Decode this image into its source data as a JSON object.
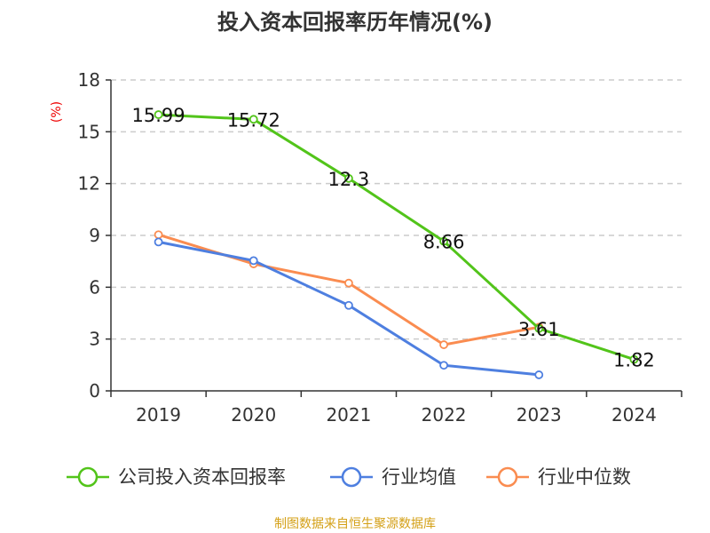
{
  "chart_data": {
    "type": "line",
    "title": "投入资本回报率历年情况(%)",
    "ylabel": "(%)",
    "categories": [
      "2019",
      "2020",
      "2021",
      "2022",
      "2023",
      "2024"
    ],
    "ylim": [
      0,
      18
    ],
    "yticks": [
      0,
      3,
      6,
      9,
      12,
      15,
      18
    ],
    "grid": true,
    "legend_placement": "bottom",
    "series": [
      {
        "name": "公司投入资本回报率",
        "color": "#52c41a",
        "values": [
          15.99,
          15.72,
          12.3,
          8.66,
          3.61,
          1.82
        ],
        "labels": [
          "15.99",
          "15.72",
          "12.3",
          "8.66",
          "3.61",
          "1.82"
        ]
      },
      {
        "name": "行业均值",
        "color": "#4e7fe0",
        "values": [
          8.62,
          7.54,
          4.95,
          1.48,
          0.93,
          null
        ]
      },
      {
        "name": "行业中位数",
        "color": "#fa8c50",
        "values": [
          9.04,
          7.35,
          6.24,
          2.67,
          3.69,
          null
        ]
      }
    ]
  },
  "source": "制图数据来自恒生聚源数据库"
}
